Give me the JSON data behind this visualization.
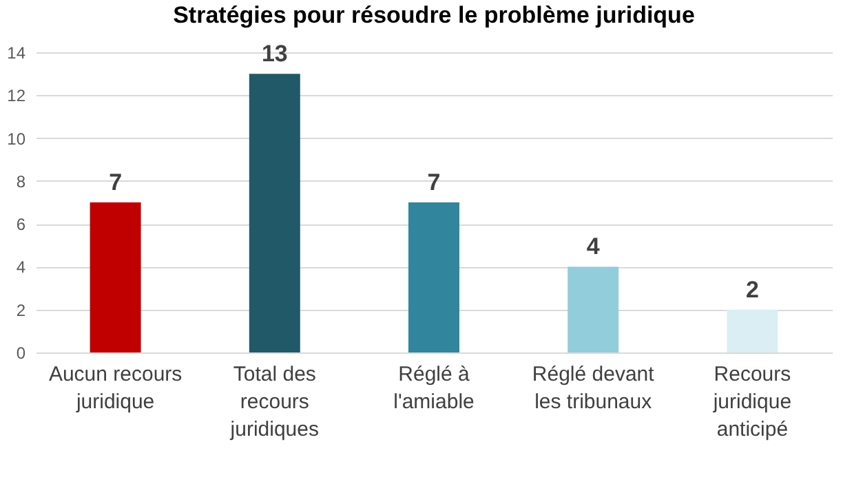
{
  "chart_data": {
    "type": "bar",
    "title": "Stratégies pour résoudre le problème juridique",
    "categories": [
      "Aucun recours juridique",
      "Total des recours juridiques",
      "Réglé à l'amiable",
      "Réglé devant les tribunaux",
      "Recours juridique anticipé"
    ],
    "values": [
      7,
      13,
      7,
      4,
      2
    ],
    "colors": [
      "#c00000",
      "#215968",
      "#31859c",
      "#92cddc",
      "#daeef3"
    ],
    "ylim": [
      0,
      14
    ],
    "yticks": [
      0,
      2,
      4,
      6,
      8,
      10,
      12,
      14
    ],
    "grid": "y",
    "data_labels": true
  }
}
